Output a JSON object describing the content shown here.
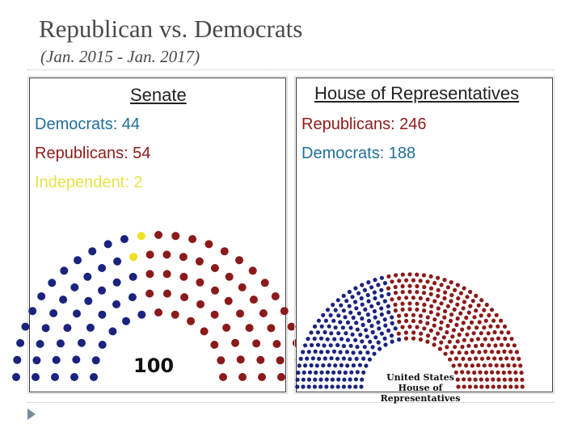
{
  "slide": {
    "title": "Republican vs. Democrats",
    "subtitle": "(Jan. 2015 - Jan. 2017)"
  },
  "senate": {
    "heading": "Senate",
    "democrats_label": "Democrats: 44",
    "republicans_label": "Republicans: 54",
    "independent_label": "Independent: 2",
    "total": "100"
  },
  "house": {
    "heading": "House of Representatives",
    "republicans_label": "Republicans:  246",
    "democrats_label": "Democrats: 188",
    "badge_line1": "United States",
    "badge_line2": "House of Representatives"
  },
  "colors": {
    "democrat": "#1a237e",
    "republican": "#8b1a1a",
    "independent": "#f0e020",
    "dem_text": "#1f6f9a",
    "rep_text": "#8f1a1a",
    "ind_text": "#e8e24a"
  },
  "chart_data": [
    {
      "type": "parliament",
      "categories": [
        "Democrats",
        "Independent",
        "Republicans"
      ],
      "values": [
        44,
        2,
        54
      ],
      "title": "Senate"
    },
    {
      "type": "parliament",
      "categories": [
        "Democrats",
        "Republicans"
      ],
      "values": [
        188,
        246
      ],
      "title": "House of Representatives"
    }
  ]
}
